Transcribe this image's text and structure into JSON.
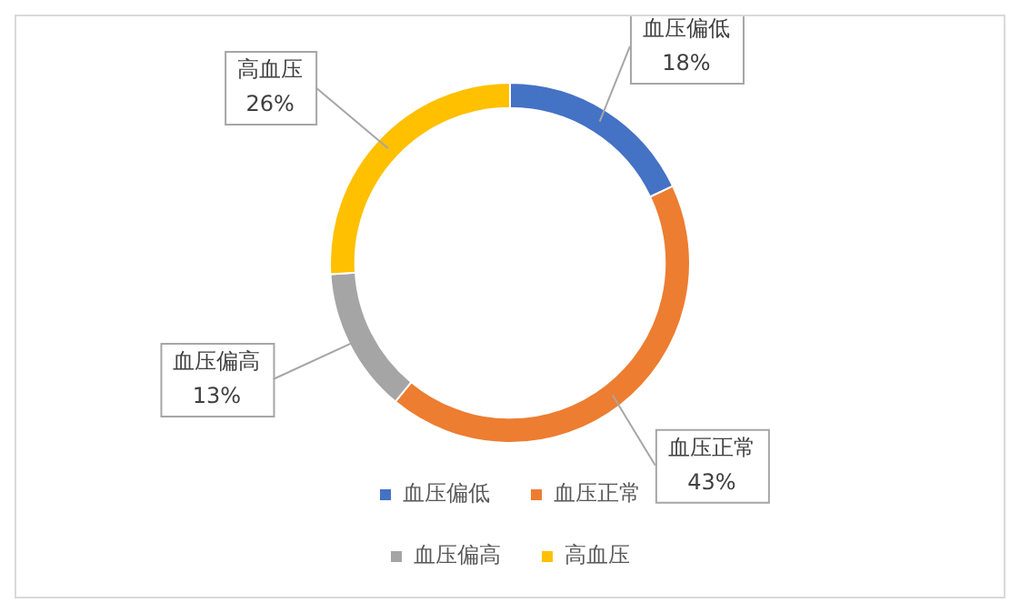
{
  "chart_data": {
    "type": "donut",
    "categories": [
      "血压偏低",
      "血压正常",
      "血压偏高",
      "高血压"
    ],
    "values": [
      18,
      43,
      13,
      26
    ],
    "value_labels": [
      "18%",
      "43%",
      "13%",
      "26%"
    ],
    "colors": [
      "#4472c4",
      "#ed7d31",
      "#a5a5a5",
      "#ffc000"
    ],
    "legend": "bottom"
  }
}
